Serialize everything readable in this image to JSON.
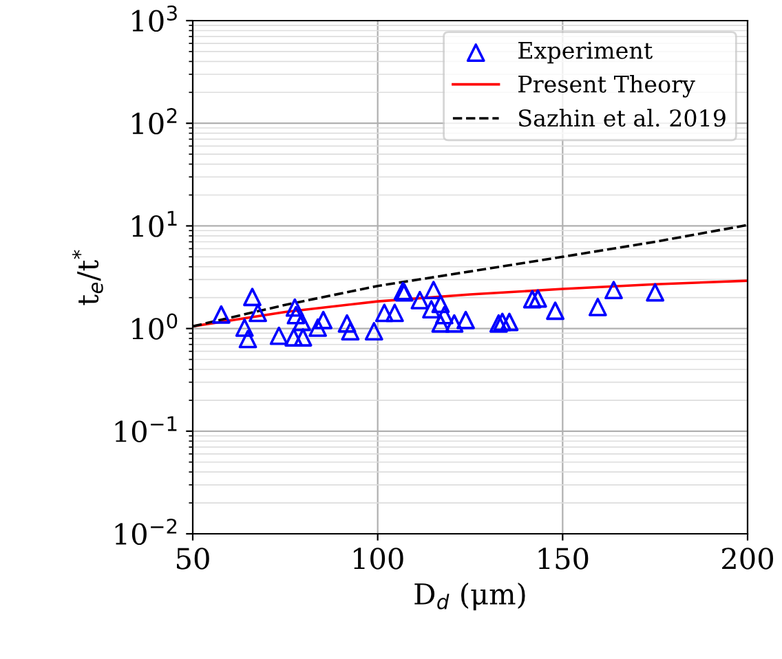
{
  "chart_data": {
    "type": "scatter",
    "xlabel": "D$_{d}$ (μm)",
    "ylabel": "t$_{e}$/t$^{*}$",
    "log": "y",
    "grid": true,
    "legend": "top right",
    "xlim": [
      50,
      200
    ],
    "xticks": [
      50,
      100,
      150,
      200
    ],
    "ylim": [
      0.01,
      1000
    ],
    "yticks": [
      {
        "value": 0.01,
        "label": "10$^{−2}$"
      },
      {
        "value": 0.1,
        "label": "10$^{−1}$"
      },
      {
        "value": 1,
        "label": "10$^{0}$"
      },
      {
        "value": 10,
        "label": "10$^{1}$"
      },
      {
        "value": 100,
        "label": "10$^{2}$"
      },
      {
        "value": 1000,
        "label": "10$^{3}$"
      }
    ],
    "series": [
      {
        "name": "Experiment",
        "marker": "triangle",
        "color": "#0000ff",
        "x": [
          57.7,
          64.0,
          64.9,
          66.1,
          67.6,
          73.3,
          77.6,
          77.9,
          77.3,
          79.5,
          79.8,
          83.8,
          85.3,
          91.7,
          92.6,
          99.0,
          101.8,
          104.6,
          106.8,
          107.2,
          111.4,
          115.1,
          114.5,
          117.0,
          118.0,
          117.0,
          120.7,
          123.8,
          132.7,
          133.7,
          135.6,
          141.8,
          143.3,
          148.0,
          159.5,
          163.8,
          175.0
        ],
        "values": [
          1.37,
          1.02,
          0.79,
          2.03,
          1.42,
          0.85,
          1.6,
          1.35,
          0.82,
          1.16,
          0.82,
          1.02,
          1.21,
          1.12,
          0.94,
          0.94,
          1.42,
          1.42,
          2.32,
          2.25,
          1.89,
          2.37,
          1.54,
          1.74,
          1.35,
          1.12,
          1.12,
          1.21,
          1.12,
          1.16,
          1.16,
          1.93,
          1.96,
          1.49,
          1.62,
          2.37,
          2.25
        ]
      },
      {
        "name": "Present Theory",
        "type": "line",
        "color": "#ff0000",
        "line_style": "solid",
        "x": [
          50,
          75,
          100,
          125,
          150,
          175,
          200
        ],
        "values": [
          1.05,
          1.45,
          1.84,
          2.15,
          2.43,
          2.7,
          2.92
        ]
      },
      {
        "name": "Sazhin et al. 2019",
        "type": "line",
        "color": "#000000",
        "line_style": "dashed",
        "x": [
          50,
          75,
          100,
          125,
          150,
          175,
          200
        ],
        "values": [
          1.05,
          1.7,
          2.6,
          3.6,
          5.0,
          7.0,
          10.2
        ]
      }
    ]
  }
}
